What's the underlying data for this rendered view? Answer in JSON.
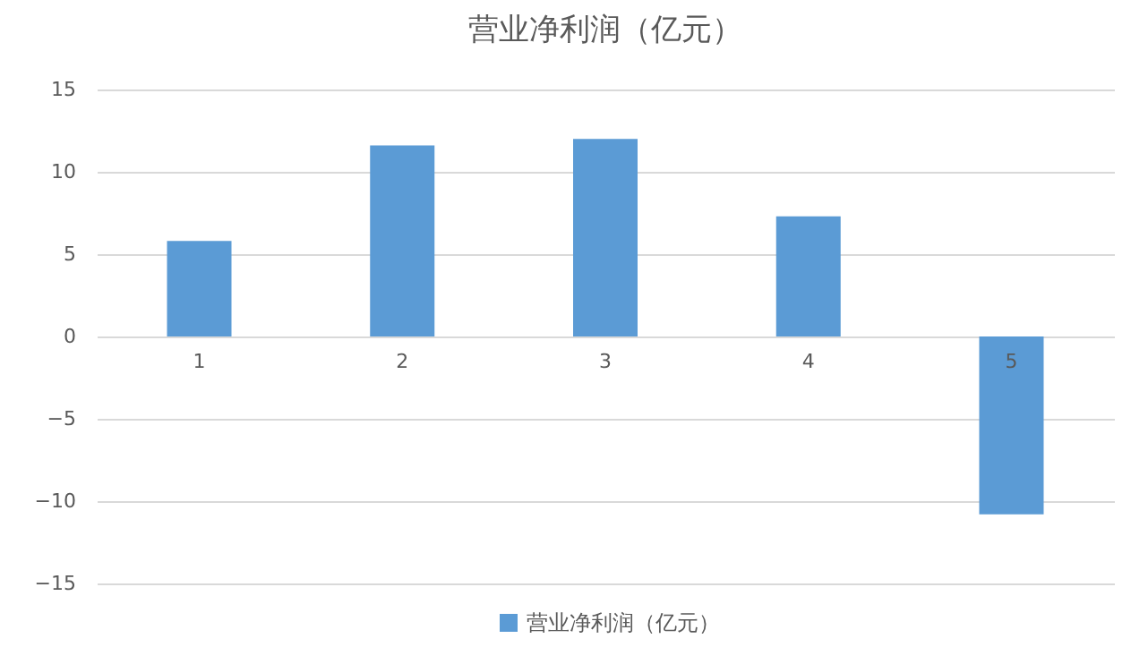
{
  "chart_data": {
    "type": "bar",
    "title": "营业净利润（亿元）",
    "categories": [
      "1",
      "2",
      "3",
      "4",
      "5"
    ],
    "series": [
      {
        "name": "营业净利润（亿元）",
        "color": "#5b9bd5",
        "values": [
          5.8,
          11.6,
          12.0,
          7.3,
          -10.8
        ]
      }
    ],
    "ylim": [
      -15,
      15
    ],
    "yticks": [
      -15,
      -10,
      -5,
      0,
      5,
      10,
      15
    ],
    "grid": "y",
    "legend": "bottom"
  }
}
